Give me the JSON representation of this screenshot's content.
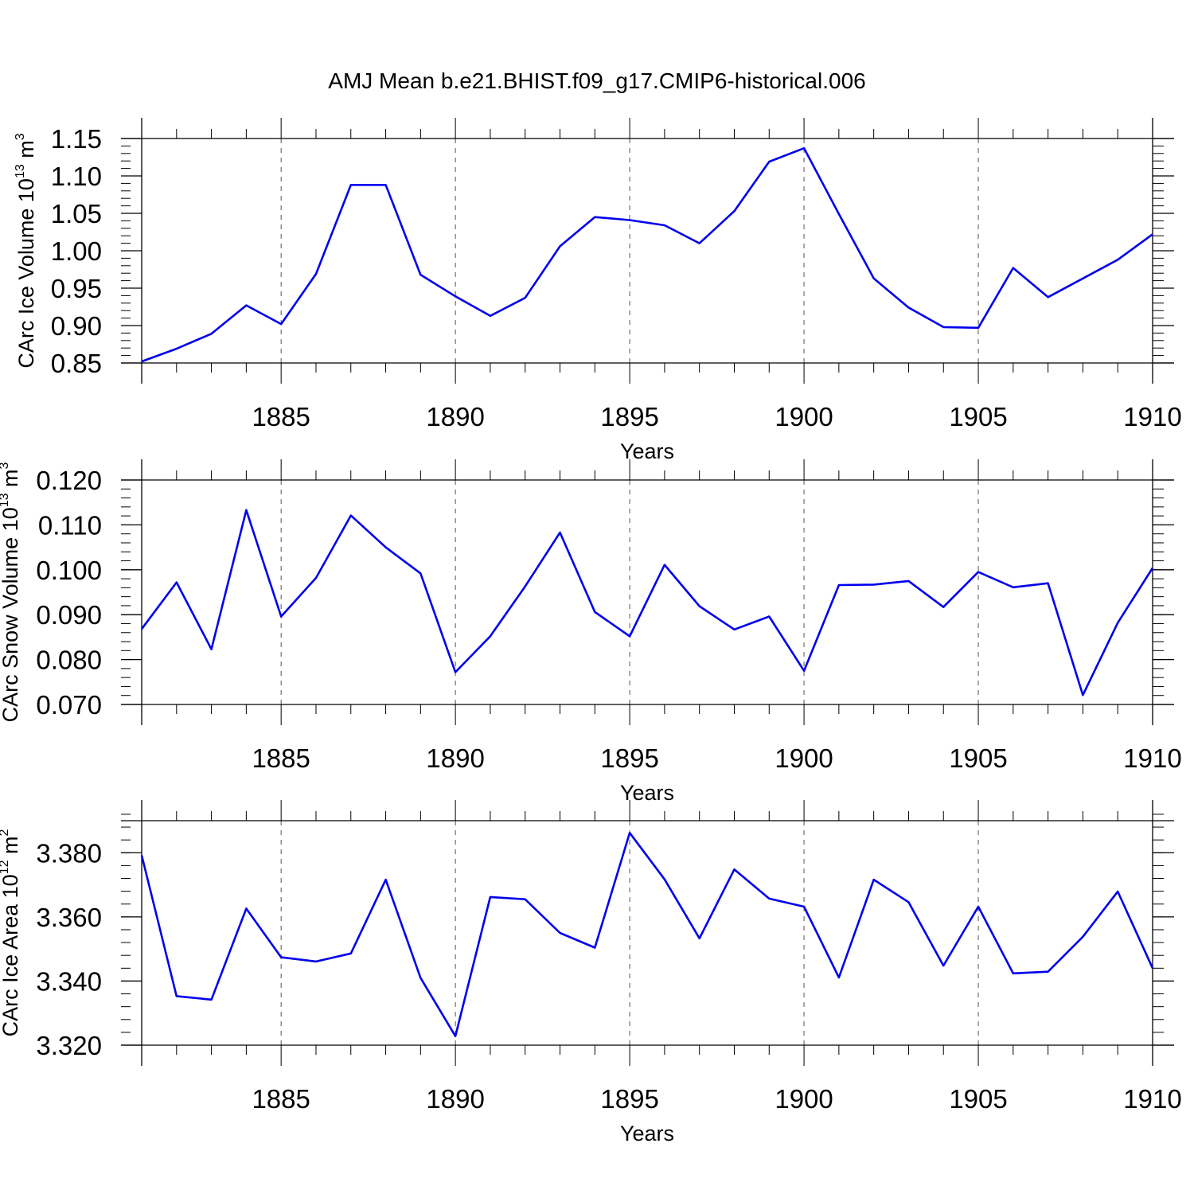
{
  "figure": {
    "title": "AMJ Mean b.e21.BHIST.f09_g17.CMIP6-historical.006"
  },
  "style": {
    "line_color": "#0000ee",
    "axis_color": "#000000",
    "grid_color": "#555555",
    "background": "#ffffff"
  },
  "chart_data": [
    {
      "type": "line",
      "ylabel_main": "CArc Ice Volume 10",
      "ylabel_exp": "13",
      "ylabel_unit": " m",
      "ylabel_unit_exp": "3",
      "xlabel": "Years",
      "xlim": [
        1881,
        1910
      ],
      "ylim": [
        0.85,
        1.15
      ],
      "x_ticks": [
        1885,
        1890,
        1895,
        1900,
        1905,
        1910
      ],
      "x_tick_labels": [
        "1885",
        "1890",
        "1895",
        "1900",
        "1905",
        "1910"
      ],
      "y_ticks": [
        0.85,
        0.9,
        0.95,
        1.0,
        1.05,
        1.1,
        1.15
      ],
      "y_tick_labels": [
        "0.85",
        "0.90",
        "0.95",
        "1.00",
        "1.05",
        "1.10",
        "1.15"
      ],
      "y_minor_step": 0.01,
      "grid": "x-major dashed",
      "series": [
        {
          "name": "CArc Ice Volume",
          "x": [
            1881,
            1882,
            1883,
            1884,
            1885,
            1886,
            1887,
            1888,
            1889,
            1890,
            1891,
            1892,
            1893,
            1894,
            1895,
            1896,
            1897,
            1898,
            1899,
            1900,
            1901,
            1902,
            1903,
            1904,
            1905,
            1906,
            1907,
            1908,
            1909,
            1910
          ],
          "values": [
            0.852,
            0.869,
            0.889,
            0.927,
            0.902,
            0.969,
            1.088,
            1.088,
            0.968,
            0.939,
            0.913,
            0.937,
            1.006,
            1.045,
            1.041,
            1.034,
            1.01,
            1.053,
            1.119,
            1.137,
            1.049,
            0.963,
            0.924,
            0.898,
            0.897,
            0.977,
            0.938,
            0.963,
            0.988,
            1.022
          ]
        }
      ]
    },
    {
      "type": "line",
      "ylabel_main": "CArc Snow Volume 10",
      "ylabel_exp": "13",
      "ylabel_unit": " m",
      "ylabel_unit_exp": "3",
      "xlabel": "Years",
      "xlim": [
        1881,
        1910
      ],
      "ylim": [
        0.07,
        0.12
      ],
      "x_ticks": [
        1885,
        1890,
        1895,
        1900,
        1905,
        1910
      ],
      "x_tick_labels": [
        "1885",
        "1890",
        "1895",
        "1900",
        "1905",
        "1910"
      ],
      "y_ticks": [
        0.07,
        0.08,
        0.09,
        0.1,
        0.11,
        0.12
      ],
      "y_tick_labels": [
        "0.070",
        "0.080",
        "0.090",
        "0.100",
        "0.110",
        "0.120"
      ],
      "y_minor_step": 0.002,
      "grid": "x-major dashed",
      "series": [
        {
          "name": "CArc Snow Volume",
          "x": [
            1881,
            1882,
            1883,
            1884,
            1885,
            1886,
            1887,
            1888,
            1889,
            1890,
            1891,
            1892,
            1893,
            1894,
            1895,
            1896,
            1897,
            1898,
            1899,
            1900,
            1901,
            1902,
            1903,
            1904,
            1905,
            1906,
            1907,
            1908,
            1909,
            1910
          ],
          "values": [
            0.0868,
            0.0972,
            0.0823,
            0.1133,
            0.0896,
            0.0982,
            0.1121,
            0.105,
            0.0992,
            0.0772,
            0.0852,
            0.0963,
            0.1083,
            0.0906,
            0.0852,
            0.1011,
            0.0919,
            0.0867,
            0.0896,
            0.0775,
            0.0966,
            0.0967,
            0.0975,
            0.0917,
            0.0995,
            0.0961,
            0.097,
            0.0721,
            0.0882,
            0.1004
          ]
        }
      ]
    },
    {
      "type": "line",
      "ylabel_main": "CArc Ice Area 10",
      "ylabel_exp": "12",
      "ylabel_unit": " m",
      "ylabel_unit_exp": "2",
      "xlabel": "Years",
      "xlim": [
        1881,
        1910
      ],
      "ylim": [
        3.32,
        3.39
      ],
      "x_ticks": [
        1885,
        1890,
        1895,
        1900,
        1905,
        1910
      ],
      "x_tick_labels": [
        "1885",
        "1890",
        "1895",
        "1900",
        "1905",
        "1910"
      ],
      "y_ticks": [
        3.32,
        3.34,
        3.36,
        3.38
      ],
      "y_tick_labels": [
        "3.320",
        "3.340",
        "3.360",
        "3.380"
      ],
      "y_minor_step": 0.004,
      "grid": "x-major dashed",
      "series": [
        {
          "name": "CArc Ice Area",
          "x": [
            1881,
            1882,
            1883,
            1884,
            1885,
            1886,
            1887,
            1888,
            1889,
            1890,
            1891,
            1892,
            1893,
            1894,
            1895,
            1896,
            1897,
            1898,
            1899,
            1900,
            1901,
            1902,
            1903,
            1904,
            1905,
            1906,
            1907,
            1908,
            1909,
            1910
          ],
          "values": [
            3.3792,
            3.3353,
            3.3342,
            3.3626,
            3.3474,
            3.3461,
            3.3486,
            3.3716,
            3.341,
            3.3228,
            3.3662,
            3.3655,
            3.355,
            3.3504,
            3.3862,
            3.3717,
            3.3533,
            3.3748,
            3.3657,
            3.3632,
            3.3411,
            3.3716,
            3.3646,
            3.3448,
            3.3632,
            3.3424,
            3.3429,
            3.3538,
            3.3679,
            3.344
          ]
        }
      ]
    }
  ]
}
